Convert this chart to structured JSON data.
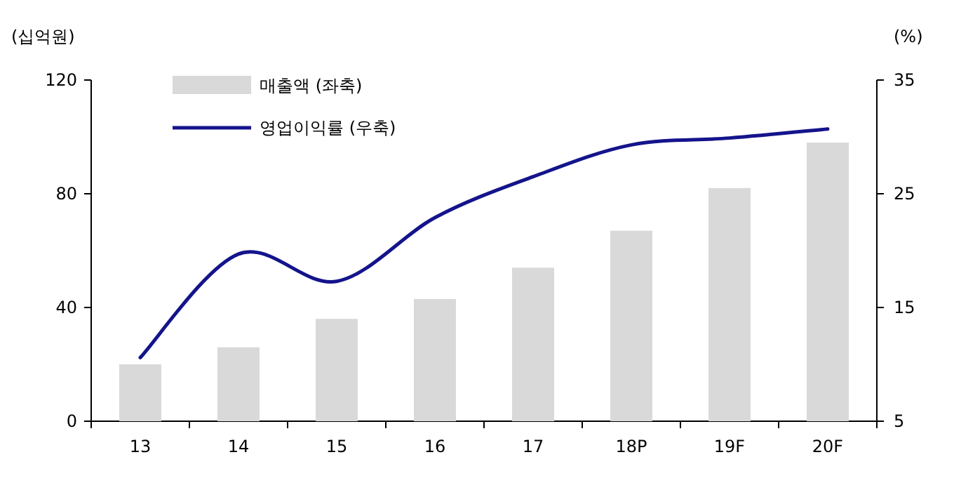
{
  "chart_data": {
    "type": "bar",
    "ylabel": "(십억원)",
    "y2label": "(%)",
    "categories": [
      "13",
      "14",
      "15",
      "16",
      "17",
      "18P",
      "19F",
      "20F"
    ],
    "series": [
      {
        "name": "매출액 (좌축)",
        "color": "#d9d9d9",
        "values": [
          20,
          26,
          36,
          43,
          54,
          67,
          82,
          98
        ]
      },
      {
        "name": "영업이익률 (우축)",
        "type": "line",
        "axis": "y2",
        "color": "#14148c",
        "values": [
          10.6,
          19.7,
          17.3,
          22.9,
          26.5,
          29.3,
          29.9,
          30.7
        ]
      }
    ],
    "ylim": [
      0,
      120
    ],
    "yticks": [
      0,
      40,
      80,
      120
    ],
    "y2lim": [
      5,
      35
    ],
    "y2ticks": [
      5,
      15,
      25,
      35
    ],
    "legend": "top left"
  }
}
